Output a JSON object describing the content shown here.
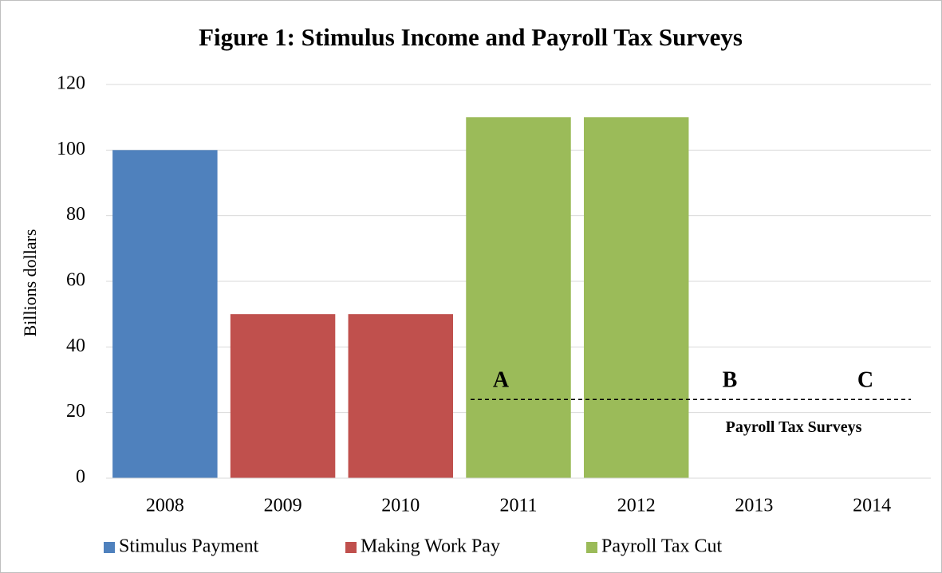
{
  "chart_data": {
    "type": "bar",
    "title": "Figure 1: Stimulus  Income and Payroll Tax Surveys",
    "y_label": "Billions  dollars",
    "categories": [
      "2008",
      "2009",
      "2010",
      "2011",
      "2012",
      "2013",
      "2014"
    ],
    "series": [
      {
        "name": "Stimulus Payment",
        "color": "#4f81bd",
        "values": [
          100,
          null,
          null,
          null,
          null,
          null,
          null
        ]
      },
      {
        "name": "Making Work Pay",
        "color": "#c0504d",
        "values": [
          null,
          50,
          50,
          null,
          null,
          null,
          null
        ]
      },
      {
        "name": "Payroll Tax Cut",
        "color": "#9bbb59",
        "values": [
          null,
          null,
          null,
          110,
          110,
          null,
          null
        ]
      }
    ],
    "ylim": [
      0,
      120
    ],
    "yticks": [
      0,
      20,
      40,
      60,
      80,
      100,
      120
    ],
    "grid": true,
    "legend": "bottom",
    "reference_line": 24,
    "annotations": [
      "A",
      "B",
      "C",
      "Payroll Tax Surveys"
    ]
  }
}
